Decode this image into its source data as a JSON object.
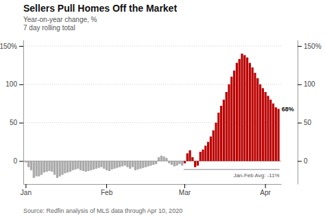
{
  "chart_data": {
    "type": "bar",
    "title": "Sellers Pull Homes Off the Market",
    "subtitle": [
      "Year-on-year change, %",
      "7 day rolling total"
    ],
    "source": "Source: Redfin analysis of MLS data through Apr 10, 2020",
    "categories": [
      "Jan",
      null,
      null,
      null,
      null,
      null,
      null,
      null,
      null,
      null,
      null,
      null,
      null,
      null,
      null,
      null,
      null,
      null,
      null,
      null,
      null,
      null,
      null,
      null,
      null,
      null,
      null,
      null,
      null,
      null,
      null,
      "Feb",
      null,
      null,
      null,
      null,
      null,
      null,
      null,
      null,
      null,
      null,
      null,
      null,
      null,
      null,
      null,
      null,
      null,
      null,
      null,
      null,
      null,
      null,
      null,
      null,
      null,
      null,
      null,
      null,
      null,
      "Mar",
      null,
      null,
      null,
      null,
      null,
      null,
      null,
      null,
      null,
      null,
      null,
      null,
      null,
      null,
      null,
      null,
      null,
      null,
      null,
      null,
      null,
      null,
      null,
      null,
      null,
      null,
      null,
      null,
      null,
      null,
      "Apr",
      null,
      null,
      null,
      null,
      null
    ],
    "values": [
      -2,
      -8,
      -12,
      -22,
      -20,
      -20,
      -18,
      -15,
      -14,
      -13,
      -14,
      -18,
      -22,
      -20,
      -18,
      -16,
      -15,
      -14,
      -12,
      -11,
      -10,
      -12,
      -13,
      -14,
      -13,
      -12,
      -11,
      -10,
      -9,
      -8,
      -10,
      -12,
      -13,
      -11,
      -10,
      -9,
      -8,
      -7,
      -6,
      -8,
      -10,
      -8,
      -12,
      -11,
      -10,
      -9,
      -8,
      -7,
      -6,
      -5,
      -4,
      5,
      7,
      6,
      4,
      -3,
      -5,
      -7,
      -6,
      -4,
      -6,
      -3,
      10,
      14,
      5,
      -8,
      -6,
      12,
      15,
      20,
      25,
      32,
      40,
      50,
      63,
      72,
      80,
      90,
      100,
      110,
      118,
      128,
      133,
      140,
      138,
      135,
      128,
      122,
      115,
      108,
      100,
      95,
      90,
      85,
      80,
      75,
      70,
      68
    ],
    "colors": [
      "#aaaaaa",
      "#aaaaaa",
      "#aaaaaa",
      "#aaaaaa",
      "#aaaaaa",
      "#aaaaaa",
      "#aaaaaa",
      "#aaaaaa",
      "#aaaaaa",
      "#aaaaaa",
      "#aaaaaa",
      "#aaaaaa",
      "#aaaaaa",
      "#aaaaaa",
      "#aaaaaa",
      "#aaaaaa",
      "#aaaaaa",
      "#aaaaaa",
      "#aaaaaa",
      "#aaaaaa",
      "#aaaaaa",
      "#aaaaaa",
      "#aaaaaa",
      "#aaaaaa",
      "#aaaaaa",
      "#aaaaaa",
      "#aaaaaa",
      "#aaaaaa",
      "#aaaaaa",
      "#aaaaaa",
      "#aaaaaa",
      "#aaaaaa",
      "#aaaaaa",
      "#aaaaaa",
      "#aaaaaa",
      "#aaaaaa",
      "#aaaaaa",
      "#aaaaaa",
      "#aaaaaa",
      "#aaaaaa",
      "#aaaaaa",
      "#aaaaaa",
      "#aaaaaa",
      "#aaaaaa",
      "#aaaaaa",
      "#aaaaaa",
      "#aaaaaa",
      "#aaaaaa",
      "#aaaaaa",
      "#aaaaaa",
      "#aaaaaa",
      "#aaaaaa",
      "#aaaaaa",
      "#aaaaaa",
      "#aaaaaa",
      "#aaaaaa",
      "#aaaaaa",
      "#aaaaaa",
      "#aaaaaa",
      "#aaaaaa",
      "#aaaaaa",
      "#bb0000",
      "#bb0000",
      "#bb0000",
      "#bb0000",
      "#bb0000",
      "#bb0000",
      "#bb0000",
      "#bb0000",
      "#bb0000",
      "#bb0000",
      "#bb0000",
      "#bb0000",
      "#bb0000",
      "#bb0000",
      "#bb0000",
      "#bb0000",
      "#bb0000",
      "#bb0000",
      "#bb0000",
      "#bb0000",
      "#bb0000",
      "#bb0000",
      "#bb0000",
      "#bb0000",
      "#bb0000",
      "#bb0000",
      "#bb0000",
      "#bb0000",
      "#bb0000",
      "#bb0000",
      "#bb0000",
      "#bb0000",
      "#bb0000",
      "#bb0000",
      "#bb0000",
      "#bb0000",
      "#bb0000"
    ],
    "ylim": [
      -30,
      158
    ],
    "yticks": [
      0,
      50,
      100,
      {
        "value": 150,
        "label": "150%"
      }
    ],
    "grid": true,
    "reference_line": {
      "value": -11,
      "label": "Jan-Feb Avg: -11%"
    },
    "annotations": [
      {
        "text": "68%",
        "value": 68
      }
    ]
  }
}
